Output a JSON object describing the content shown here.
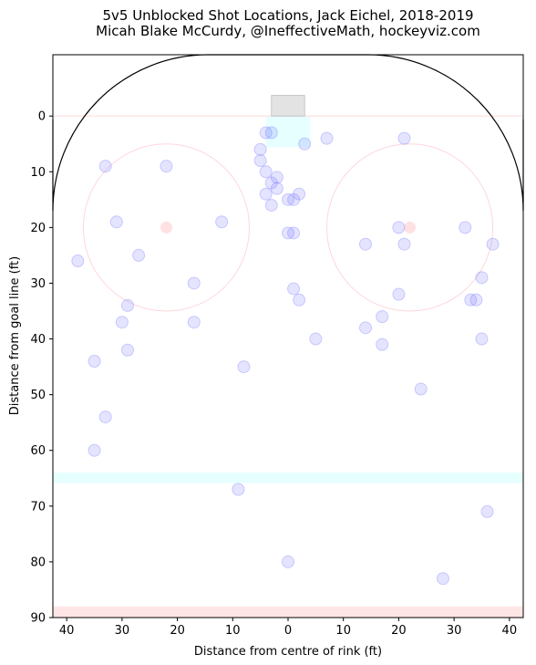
{
  "chart_data": {
    "type": "scatter",
    "title": "5v5 Unblocked Shot Locations, Jack Eichel, 2018-2019",
    "subtitle": "Micah Blake McCurdy, @IneffectiveMath, hockeyviz.com",
    "xlabel": "Distance from centre of rink (ft)",
    "ylabel": "Distance from goal line (ft)",
    "xlim": [
      42.5,
      -42.5
    ],
    "ylim": [
      -11,
      90
    ],
    "x_ticks": [
      40,
      30,
      20,
      10,
      0,
      10,
      20,
      30,
      40
    ],
    "y_ticks": [
      0,
      10,
      20,
      30,
      40,
      50,
      60,
      70,
      80,
      90
    ],
    "grid": false,
    "marker_color": "#7777ff",
    "points": [
      {
        "x": 38,
        "y": 26
      },
      {
        "x": 35,
        "y": 44
      },
      {
        "x": 35,
        "y": 60
      },
      {
        "x": 33,
        "y": 9
      },
      {
        "x": 33,
        "y": 54
      },
      {
        "x": 31,
        "y": 19
      },
      {
        "x": 30,
        "y": 37
      },
      {
        "x": 29,
        "y": 34
      },
      {
        "x": 29,
        "y": 42
      },
      {
        "x": 27,
        "y": 25
      },
      {
        "x": 22,
        "y": 9
      },
      {
        "x": 17,
        "y": 30
      },
      {
        "x": 17,
        "y": 37
      },
      {
        "x": 12,
        "y": 19
      },
      {
        "x": 8,
        "y": 45
      },
      {
        "x": 9,
        "y": 67
      },
      {
        "x": 5,
        "y": 6
      },
      {
        "x": 5,
        "y": 8
      },
      {
        "x": 4,
        "y": 3
      },
      {
        "x": 4,
        "y": 10
      },
      {
        "x": 4,
        "y": 14
      },
      {
        "x": 3,
        "y": 3
      },
      {
        "x": 3,
        "y": 12
      },
      {
        "x": 3,
        "y": 16
      },
      {
        "x": 2,
        "y": 11
      },
      {
        "x": 2,
        "y": 13
      },
      {
        "x": 0,
        "y": 15
      },
      {
        "x": 0,
        "y": 21
      },
      {
        "x": 0,
        "y": 80
      },
      {
        "x": -1,
        "y": 15
      },
      {
        "x": -1,
        "y": 21
      },
      {
        "x": -1,
        "y": 31
      },
      {
        "x": -2,
        "y": 14
      },
      {
        "x": -2,
        "y": 33
      },
      {
        "x": -3,
        "y": 5
      },
      {
        "x": -5,
        "y": 40
      },
      {
        "x": -7,
        "y": 4
      },
      {
        "x": -14,
        "y": 23
      },
      {
        "x": -14,
        "y": 38
      },
      {
        "x": -17,
        "y": 36
      },
      {
        "x": -17,
        "y": 41
      },
      {
        "x": -20,
        "y": 20
      },
      {
        "x": -20,
        "y": 32
      },
      {
        "x": -21,
        "y": 4
      },
      {
        "x": -21,
        "y": 23
      },
      {
        "x": -24,
        "y": 49
      },
      {
        "x": -28,
        "y": 83
      },
      {
        "x": -32,
        "y": 20
      },
      {
        "x": -33,
        "y": 33
      },
      {
        "x": -34,
        "y": 33
      },
      {
        "x": -35,
        "y": 29
      },
      {
        "x": -35,
        "y": 40
      },
      {
        "x": -36,
        "y": 71
      },
      {
        "x": -37,
        "y": 23
      }
    ]
  }
}
